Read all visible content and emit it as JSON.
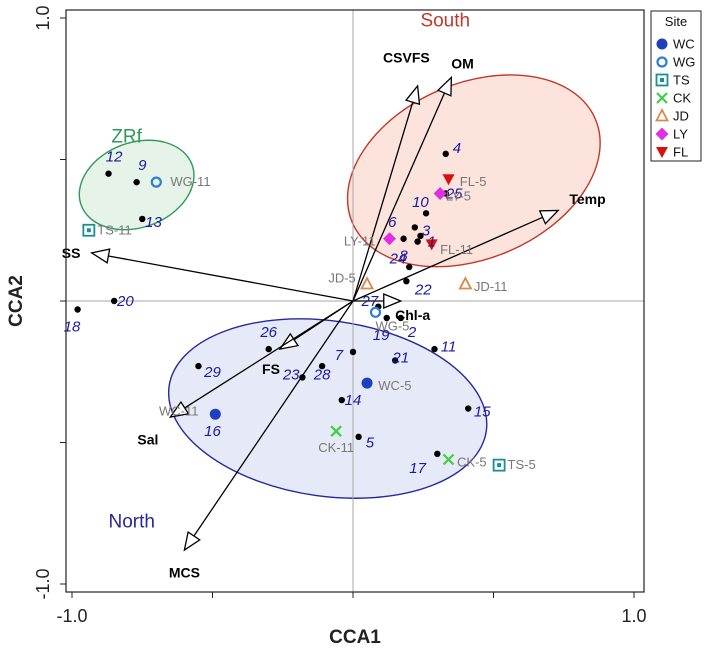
{
  "chart_data": {
    "type": "scatter",
    "title": "",
    "xlabel": "CCA1",
    "ylabel": "CCA2",
    "xlim": [
      -1.0,
      1.0
    ],
    "ylim": [
      -1.0,
      1.0
    ],
    "x_tick_labels": [
      {
        "v": -1.0,
        "t": "-1.0"
      },
      {
        "v": 1.0,
        "t": "1.0"
      }
    ],
    "y_tick_labels": [
      {
        "v": 1.0,
        "t": "1.0"
      },
      {
        "v": -1.0,
        "t": "-1.0"
      }
    ],
    "minor_ticks": [
      -1.0,
      -0.5,
      0.0,
      0.5,
      1.0
    ],
    "colors": {
      "axis": "#222222",
      "refline": "#aaaaaa",
      "arrow": "#000000",
      "point": "#000000",
      "number": "#1a1aa0",
      "sample_label": "#777777",
      "WC": "#1f3fbf",
      "WG": "#2c7fd0",
      "TS": "#1a8f8f",
      "CK": "#3fce3f",
      "JD": "#d88a4a",
      "LY": "#e030e0",
      "FL": "#d81010"
    },
    "groups": [
      {
        "name": "South",
        "cx": 0.43,
        "cy": 0.46,
        "rx": 0.47,
        "ry": 0.31,
        "angle": 23,
        "fill": "#fbd9d0",
        "stroke": "#c0392b",
        "label_color": "#c0392b",
        "label_x": 0.24,
        "label_y": 0.97
      },
      {
        "name": "ZRf",
        "cx": -0.77,
        "cy": 0.41,
        "rx": 0.21,
        "ry": 0.15,
        "angle": 20,
        "fill": "#dcefe2",
        "stroke": "#2e9a5a",
        "label_color": "#2e9a5a",
        "label_x": -0.86,
        "label_y": 0.56
      },
      {
        "name": "North",
        "cx": -0.09,
        "cy": -0.38,
        "rx": 0.57,
        "ry": 0.31,
        "angle": -8,
        "fill": "#dde2f4",
        "stroke": "#27279a",
        "label_color": "#27279a",
        "label_x": -0.87,
        "label_y": -0.8
      }
    ],
    "arrows": [
      {
        "name": "CSVFS",
        "x": 0.23,
        "y": 0.76,
        "lx": 0.19,
        "ly": 0.86,
        "anchor": "middle"
      },
      {
        "name": "OM",
        "x": 0.35,
        "y": 0.79,
        "lx": 0.39,
        "ly": 0.84,
        "anchor": "middle"
      },
      {
        "name": "Temp",
        "x": 0.73,
        "y": 0.32,
        "lx": 0.77,
        "ly": 0.36,
        "anchor": "start"
      },
      {
        "name": "SS",
        "x": -0.93,
        "y": 0.17,
        "lx": -0.97,
        "ly": 0.17,
        "anchor": "end"
      },
      {
        "name": "Chl-a",
        "x": 0.17,
        "y": 0.0,
        "lx": 0.15,
        "ly": -0.05,
        "anchor": "start"
      },
      {
        "name": "FS",
        "x": -0.26,
        "y": -0.17,
        "lx": -0.26,
        "ly": -0.24,
        "anchor": "end"
      },
      {
        "name": "Sal",
        "x": -0.65,
        "y": -0.41,
        "lx": -0.73,
        "ly": -0.49,
        "anchor": "middle"
      },
      {
        "name": "MCS",
        "x": -0.6,
        "y": -0.88,
        "lx": -0.6,
        "ly": -0.96,
        "anchor": "middle"
      }
    ],
    "numbered_points": [
      {
        "id": "1",
        "x": 0.24,
        "y": 0.23,
        "lx": 0.28,
        "ly": 0.21
      },
      {
        "id": "2",
        "x": 0.17,
        "y": -0.06,
        "lx": 0.21,
        "ly": -0.11
      },
      {
        "id": "3",
        "x": 0.22,
        "y": 0.26,
        "lx": 0.26,
        "ly": 0.25
      },
      {
        "id": "4",
        "x": 0.33,
        "y": 0.52,
        "lx": 0.37,
        "ly": 0.54
      },
      {
        "id": "5",
        "x": 0.02,
        "y": -0.48,
        "lx": 0.06,
        "ly": -0.5
      },
      {
        "id": "6",
        "x": 0.18,
        "y": 0.22,
        "lx": 0.14,
        "ly": 0.28
      },
      {
        "id": "7",
        "x": 0.0,
        "y": -0.18,
        "lx": -0.05,
        "ly": -0.19
      },
      {
        "id": "8",
        "x": 0.23,
        "y": 0.21,
        "lx": 0.18,
        "ly": 0.16
      },
      {
        "id": "9",
        "x": -0.77,
        "y": 0.42,
        "lx": -0.75,
        "ly": 0.48
      },
      {
        "id": "10",
        "x": 0.26,
        "y": 0.31,
        "lx": 0.24,
        "ly": 0.35
      },
      {
        "id": "11",
        "x": 0.29,
        "y": -0.17,
        "lx": 0.34,
        "ly": -0.16
      },
      {
        "id": "12",
        "x": -0.87,
        "y": 0.45,
        "lx": -0.85,
        "ly": 0.51
      },
      {
        "id": "13",
        "x": -0.75,
        "y": 0.29,
        "lx": -0.71,
        "ly": 0.28
      },
      {
        "id": "14",
        "x": -0.04,
        "y": -0.35,
        "lx": 0.0,
        "ly": -0.35
      },
      {
        "id": "15",
        "x": 0.41,
        "y": -0.38,
        "lx": 0.46,
        "ly": -0.39
      },
      {
        "id": "16",
        "x": -0.49,
        "y": -0.4,
        "lx": -0.5,
        "ly": -0.46
      },
      {
        "id": "17",
        "x": 0.3,
        "y": -0.54,
        "lx": 0.23,
        "ly": -0.59
      },
      {
        "id": "18",
        "x": -0.98,
        "y": -0.03,
        "lx": -1.0,
        "ly": -0.09
      },
      {
        "id": "19",
        "x": 0.12,
        "y": -0.06,
        "lx": 0.1,
        "ly": -0.12
      },
      {
        "id": "20",
        "x": -0.85,
        "y": 0.0,
        "lx": -0.81,
        "ly": 0.0
      },
      {
        "id": "21",
        "x": 0.15,
        "y": -0.21,
        "lx": 0.17,
        "ly": -0.2
      },
      {
        "id": "22",
        "x": 0.19,
        "y": 0.07,
        "lx": 0.25,
        "ly": 0.04
      },
      {
        "id": "23",
        "x": -0.18,
        "y": -0.27,
        "lx": -0.22,
        "ly": -0.26
      },
      {
        "id": "24",
        "x": 0.2,
        "y": 0.12,
        "lx": 0.16,
        "ly": 0.15
      },
      {
        "id": "25",
        "x": 0.33,
        "y": 0.38,
        "lx": 0.36,
        "ly": 0.38
      },
      {
        "id": "26",
        "x": -0.3,
        "y": -0.17,
        "lx": -0.3,
        "ly": -0.11
      },
      {
        "id": "27",
        "x": 0.09,
        "y": -0.02,
        "lx": 0.06,
        "ly": 0.0
      },
      {
        "id": "28",
        "x": -0.11,
        "y": -0.23,
        "lx": -0.11,
        "ly": -0.26
      },
      {
        "id": "29",
        "x": -0.55,
        "y": -0.23,
        "lx": -0.5,
        "ly": -0.25
      }
    ],
    "site_markers": [
      {
        "site": "WC",
        "x": 0.05,
        "y": -0.29,
        "label": "WC-5",
        "lx": 0.09,
        "ly": -0.3,
        "anchor": "start"
      },
      {
        "site": "WC",
        "x": -0.49,
        "y": -0.4,
        "label": "WC-11",
        "lx": -0.55,
        "ly": -0.39,
        "anchor": "end"
      },
      {
        "site": "WG",
        "x": -0.7,
        "y": 0.42,
        "label": "WG-11",
        "lx": -0.65,
        "ly": 0.42,
        "anchor": "start"
      },
      {
        "site": "WG",
        "x": 0.08,
        "y": -0.04,
        "label": "WG-5",
        "lx": 0.08,
        "ly": -0.09,
        "anchor": "start"
      },
      {
        "site": "TS",
        "x": -0.94,
        "y": 0.25,
        "label": "TS-11",
        "lx": -0.91,
        "ly": 0.25,
        "anchor": "start"
      },
      {
        "site": "TS",
        "x": 0.52,
        "y": -0.58,
        "label": "TS-5",
        "lx": 0.55,
        "ly": -0.58,
        "anchor": "start"
      },
      {
        "site": "CK",
        "x": -0.06,
        "y": -0.46,
        "label": "CK-11",
        "lx": -0.06,
        "ly": -0.52,
        "anchor": "middle"
      },
      {
        "site": "CK",
        "x": 0.34,
        "y": -0.56,
        "label": "CK-5",
        "lx": 0.37,
        "ly": -0.57,
        "anchor": "start"
      },
      {
        "site": "JD",
        "x": 0.05,
        "y": 0.06,
        "label": "JD-5",
        "lx": 0.01,
        "ly": 0.08,
        "anchor": "end"
      },
      {
        "site": "JD",
        "x": 0.4,
        "y": 0.06,
        "label": "JD-11",
        "lx": 0.43,
        "ly": 0.05,
        "anchor": "start"
      },
      {
        "site": "LY",
        "x": 0.13,
        "y": 0.22,
        "label": "LY-11",
        "lx": 0.08,
        "ly": 0.21,
        "anchor": "end"
      },
      {
        "site": "LY",
        "x": 0.31,
        "y": 0.38,
        "label": "LY-5",
        "lx": 0.33,
        "ly": 0.37,
        "anchor": "start"
      },
      {
        "site": "FL",
        "x": 0.28,
        "y": 0.2,
        "label": "FL-11",
        "lx": 0.31,
        "ly": 0.18,
        "anchor": "start"
      },
      {
        "site": "FL",
        "x": 0.34,
        "y": 0.43,
        "label": "FL-5",
        "lx": 0.38,
        "ly": 0.42,
        "anchor": "start"
      }
    ],
    "legend": {
      "title": "Site",
      "position": "top-right",
      "entries": [
        {
          "site": "WC",
          "label": "WC"
        },
        {
          "site": "WG",
          "label": "WG"
        },
        {
          "site": "TS",
          "label": "TS"
        },
        {
          "site": "CK",
          "label": "CK"
        },
        {
          "site": "JD",
          "label": "JD"
        },
        {
          "site": "LY",
          "label": "LY"
        },
        {
          "site": "FL",
          "label": "FL"
        }
      ]
    }
  }
}
